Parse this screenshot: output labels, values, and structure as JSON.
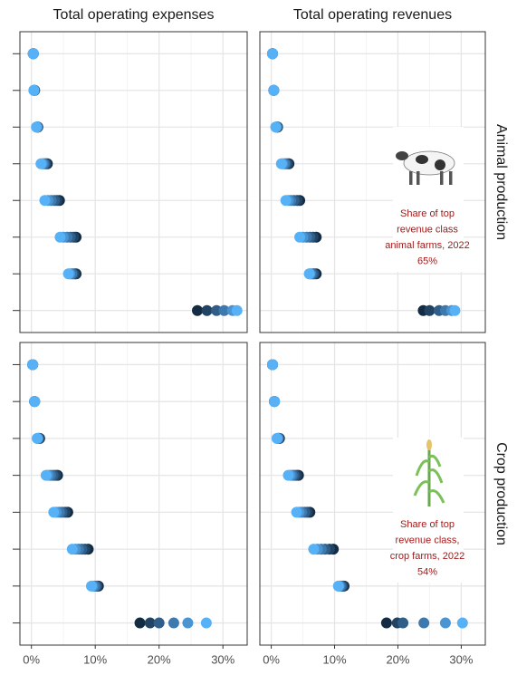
{
  "chart_data": {
    "type": "dot",
    "columns": [
      "Total operating expenses",
      "Total operating revenues"
    ],
    "rows": [
      "Animal production",
      "Crop production"
    ],
    "categories": [
      null,
      null,
      null,
      null,
      null,
      null,
      null,
      null
    ],
    "xlim": [
      -1.8,
      33.8
    ],
    "xticks": [
      {
        "value": 0,
        "label": "0%"
      },
      {
        "value": 10,
        "label": "10%"
      },
      {
        "value": 20,
        "label": "20%"
      },
      {
        "value": 30,
        "label": "30%"
      }
    ],
    "xminor": [
      5,
      15,
      25
    ],
    "grid": true,
    "annotation_color": "#a31a1a",
    "panels": [
      {
        "column": 0,
        "row": 0,
        "series": [
          {
            "color": "#132B43",
            "values": [
              0.3,
              0.5,
              1.0,
              2.5,
              4.4,
              7.0,
              7.0,
              26.0
            ]
          },
          {
            "color": "#214465",
            "values": [
              0.3,
              0.5,
              1.0,
              2.3,
              4.0,
              6.6,
              6.8,
              27.5
            ]
          },
          {
            "color": "#305E89",
            "values": [
              0.3,
              0.4,
              0.9,
              2.1,
              3.6,
              6.1,
              6.5,
              29.0
            ]
          },
          {
            "color": "#3E79AE",
            "values": [
              0.3,
              0.4,
              0.9,
              1.9,
              3.1,
              5.6,
              6.3,
              30.2
            ]
          },
          {
            "color": "#4A94D2",
            "values": [
              0.3,
              0.4,
              0.8,
              1.7,
              2.6,
              5.0,
              6.0,
              31.5
            ]
          },
          {
            "color": "#56B1F7",
            "values": [
              0.3,
              0.4,
              0.8,
              1.5,
              2.1,
              4.5,
              5.8,
              32.2
            ]
          }
        ]
      },
      {
        "column": 1,
        "row": 0,
        "series": [
          {
            "color": "#132B43",
            "values": [
              0.2,
              0.4,
              1.0,
              2.8,
              4.5,
              7.1,
              7.1,
              24.0
            ]
          },
          {
            "color": "#214465",
            "values": [
              0.2,
              0.4,
              1.0,
              2.6,
              4.1,
              6.6,
              6.8,
              25.0
            ]
          },
          {
            "color": "#305E89",
            "values": [
              0.2,
              0.4,
              0.9,
              2.3,
              3.6,
              6.1,
              6.6,
              26.5
            ]
          },
          {
            "color": "#3E79AE",
            "values": [
              0.2,
              0.4,
              0.8,
              2.1,
              3.1,
              5.6,
              6.3,
              27.5
            ]
          },
          {
            "color": "#4A94D2",
            "values": [
              0.2,
              0.4,
              0.8,
              1.8,
              2.7,
              5.0,
              6.1,
              28.5
            ]
          },
          {
            "color": "#56B1F7",
            "values": [
              0.2,
              0.4,
              0.7,
              1.6,
              2.3,
              4.5,
              6.0,
              29.0
            ]
          }
        ]
      },
      {
        "column": 0,
        "row": 1,
        "series": [
          {
            "color": "#132B43",
            "values": [
              0.2,
              0.5,
              1.3,
              4.1,
              5.7,
              8.9,
              10.5,
              17.0
            ]
          },
          {
            "color": "#214465",
            "values": [
              0.2,
              0.5,
              1.2,
              3.8,
              5.3,
              8.4,
              10.3,
              18.6
            ]
          },
          {
            "color": "#305E89",
            "values": [
              0.2,
              0.5,
              1.1,
              3.4,
              4.8,
              7.9,
              10.1,
              20.0
            ]
          },
          {
            "color": "#3E79AE",
            "values": [
              0.2,
              0.5,
              1.0,
              3.0,
              4.4,
              7.4,
              9.9,
              22.3
            ]
          },
          {
            "color": "#4A94D2",
            "values": [
              0.2,
              0.5,
              1.0,
              2.6,
              3.9,
              6.9,
              9.6,
              24.5
            ]
          },
          {
            "color": "#56B1F7",
            "values": [
              0.2,
              0.5,
              0.9,
              2.3,
              3.5,
              6.4,
              9.4,
              27.4
            ]
          }
        ]
      },
      {
        "column": 1,
        "row": 1,
        "series": [
          {
            "color": "#132B43",
            "values": [
              0.2,
              0.5,
              1.3,
              4.3,
              6.1,
              9.8,
              11.5,
              18.2
            ]
          },
          {
            "color": "#214465",
            "values": [
              0.2,
              0.5,
              1.2,
              4.0,
              5.7,
              9.2,
              11.3,
              19.9
            ]
          },
          {
            "color": "#305E89",
            "values": [
              0.2,
              0.5,
              1.1,
              3.6,
              5.3,
              8.5,
              11.1,
              20.8
            ]
          },
          {
            "color": "#3E79AE",
            "values": [
              0.2,
              0.5,
              1.1,
              3.3,
              4.8,
              7.9,
              10.9,
              24.1
            ]
          },
          {
            "color": "#4A94D2",
            "values": [
              0.2,
              0.5,
              1.0,
              3.0,
              4.4,
              7.3,
              10.7,
              27.5
            ]
          },
          {
            "color": "#56B1F7",
            "values": [
              0.2,
              0.5,
              0.9,
              2.7,
              4.0,
              6.7,
              10.6,
              30.2
            ]
          }
        ]
      }
    ],
    "annotations": [
      {
        "row": 0,
        "lines": [
          "Share of top",
          "revenue class",
          "animal farms, 2022",
          "65%"
        ]
      },
      {
        "row": 1,
        "lines": [
          "Share of top",
          "revenue class,",
          "crop farms, 2022",
          "54%"
        ]
      }
    ]
  }
}
